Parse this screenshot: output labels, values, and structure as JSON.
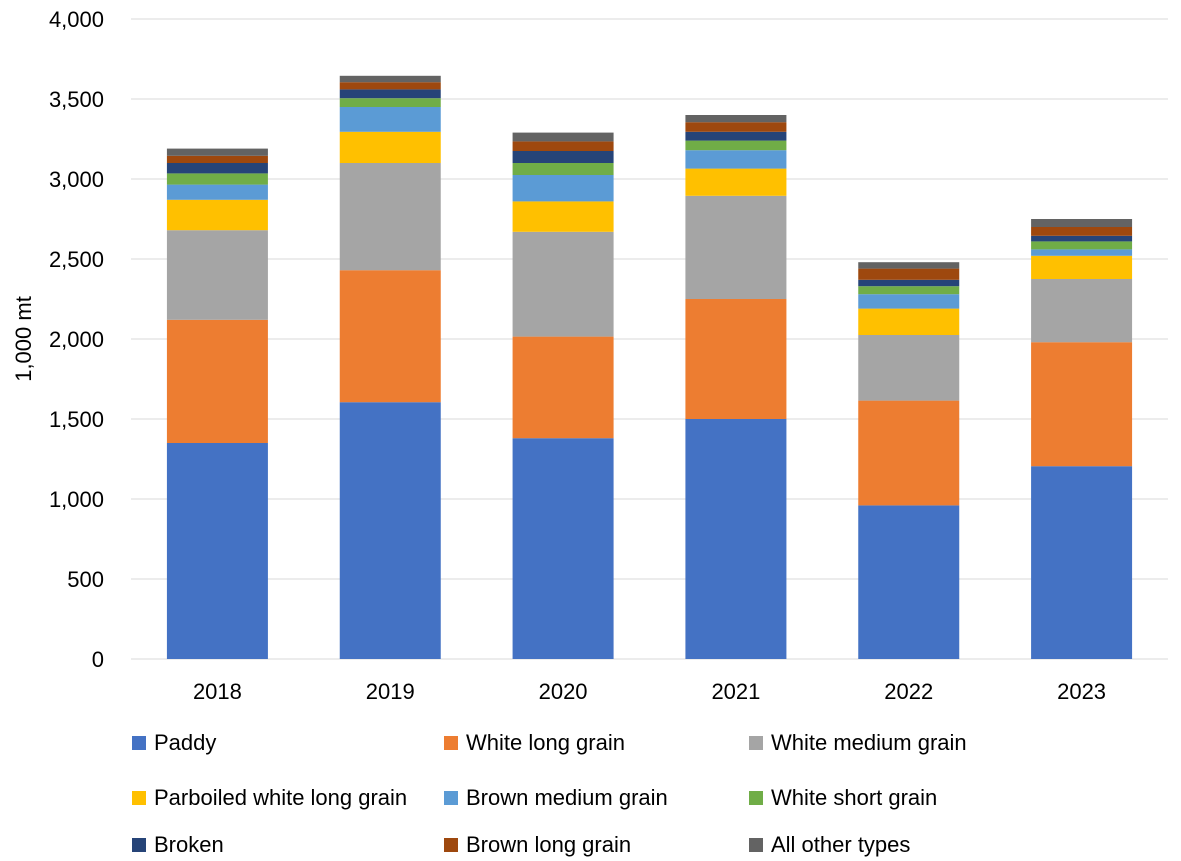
{
  "chart_data": {
    "type": "bar",
    "stacked": true,
    "title": "",
    "xlabel": "",
    "ylabel": "1,000 mt",
    "ylim": [
      0,
      4000
    ],
    "yticks": [
      0,
      500,
      1000,
      1500,
      2000,
      2500,
      3000,
      3500,
      4000
    ],
    "ytick_labels": [
      "0",
      "500",
      "1,000",
      "1,500",
      "2,000",
      "2,500",
      "3,000",
      "3,500",
      "4,000"
    ],
    "grid": true,
    "legend_position": "bottom",
    "categories": [
      "2018",
      "2019",
      "2020",
      "2021",
      "2022",
      "2023"
    ],
    "series": [
      {
        "name": "Paddy",
        "color": "#4472C4",
        "values": [
          1350,
          1605,
          1380,
          1500,
          960,
          1205
        ]
      },
      {
        "name": "White long grain",
        "color": "#ED7D31",
        "values": [
          770,
          825,
          635,
          750,
          655,
          775
        ]
      },
      {
        "name": "White medium grain",
        "color": "#A5A5A5",
        "values": [
          560,
          670,
          655,
          645,
          410,
          395
        ]
      },
      {
        "name": "Parboiled white long grain",
        "color": "#FFC000",
        "values": [
          190,
          195,
          190,
          170,
          165,
          145
        ]
      },
      {
        "name": "Brown medium grain",
        "color": "#5B9BD5",
        "values": [
          95,
          155,
          165,
          115,
          90,
          40
        ]
      },
      {
        "name": "White short grain",
        "color": "#70AD47",
        "values": [
          70,
          55,
          75,
          60,
          50,
          50
        ]
      },
      {
        "name": "Broken",
        "color": "#264478",
        "values": [
          65,
          55,
          75,
          55,
          40,
          35
        ]
      },
      {
        "name": "Brown long grain",
        "color": "#9E480E",
        "values": [
          45,
          45,
          60,
          60,
          70,
          55
        ]
      },
      {
        "name": "All other types",
        "color": "#636363",
        "values": [
          45,
          40,
          55,
          45,
          40,
          50
        ]
      }
    ]
  }
}
